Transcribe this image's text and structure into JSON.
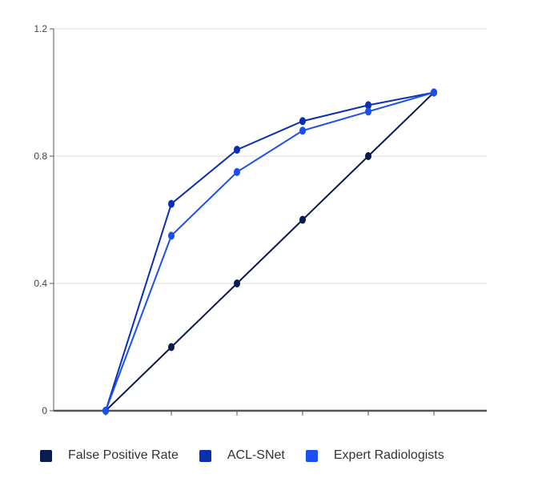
{
  "chart_data": {
    "type": "line",
    "title": "",
    "xlabel": "",
    "ylabel": "",
    "x": [
      0,
      1,
      2,
      3,
      4,
      5
    ],
    "ylim": [
      0,
      1.2
    ],
    "y_ticks": [
      "0",
      "0.4",
      "0.8",
      "1.2"
    ],
    "grid": true,
    "legend_position": "bottom",
    "series": [
      {
        "name": "False Positive Rate",
        "color": "#0b1a4f",
        "values": [
          0,
          0.2,
          0.4,
          0.6,
          0.8,
          1.0
        ]
      },
      {
        "name": "ACL-SNet",
        "color": "#0a2fb0",
        "values": [
          0,
          0.65,
          0.82,
          0.91,
          0.96,
          1.0
        ]
      },
      {
        "name": "Expert Radiologists",
        "color": "#1b4ff0",
        "values": [
          0,
          0.55,
          0.75,
          0.88,
          0.94,
          1.0
        ]
      }
    ]
  }
}
